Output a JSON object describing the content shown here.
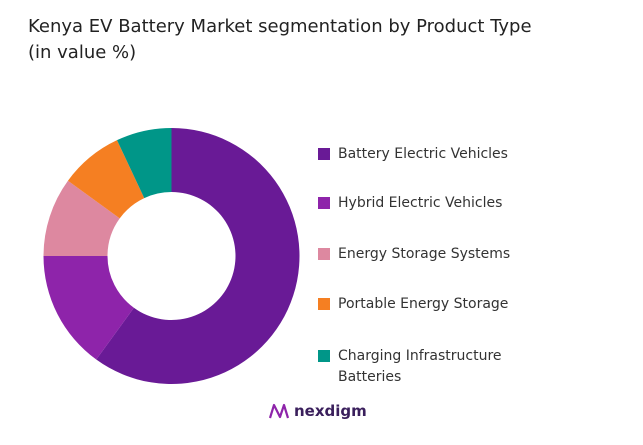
{
  "chart_data": {
    "type": "pie",
    "variant": "donut",
    "title": "Kenya EV Battery Market segmentation by Product Type (in value %)",
    "title_lines": [
      "Kenya EV Battery Market segmentation by Product Type",
      "(in value %)"
    ],
    "categories": [
      "Battery Electric Vehicles",
      "Hybrid Electric Vehicles",
      "Energy Storage Systems",
      "Portable Energy Storage",
      "Charging Infrastructure Batteries"
    ],
    "values": [
      60,
      15,
      10,
      8,
      7
    ],
    "unit": "%",
    "colors": [
      "#691a96",
      "#8e24aa",
      "#dd88a0",
      "#f57f22",
      "#009688"
    ],
    "legend_position": "right",
    "start_angle": "top, clockwise"
  },
  "legend_lines": [
    [
      "Battery Electric Vehicles"
    ],
    [
      "Hybrid Electric Vehicles"
    ],
    [
      "Energy Storage Systems"
    ],
    [
      "Portable Energy Storage"
    ],
    [
      "Charging Infrastructure",
      "Batteries"
    ]
  ],
  "logo": {
    "text": "nexdigm",
    "color": "#3a1f5c"
  }
}
